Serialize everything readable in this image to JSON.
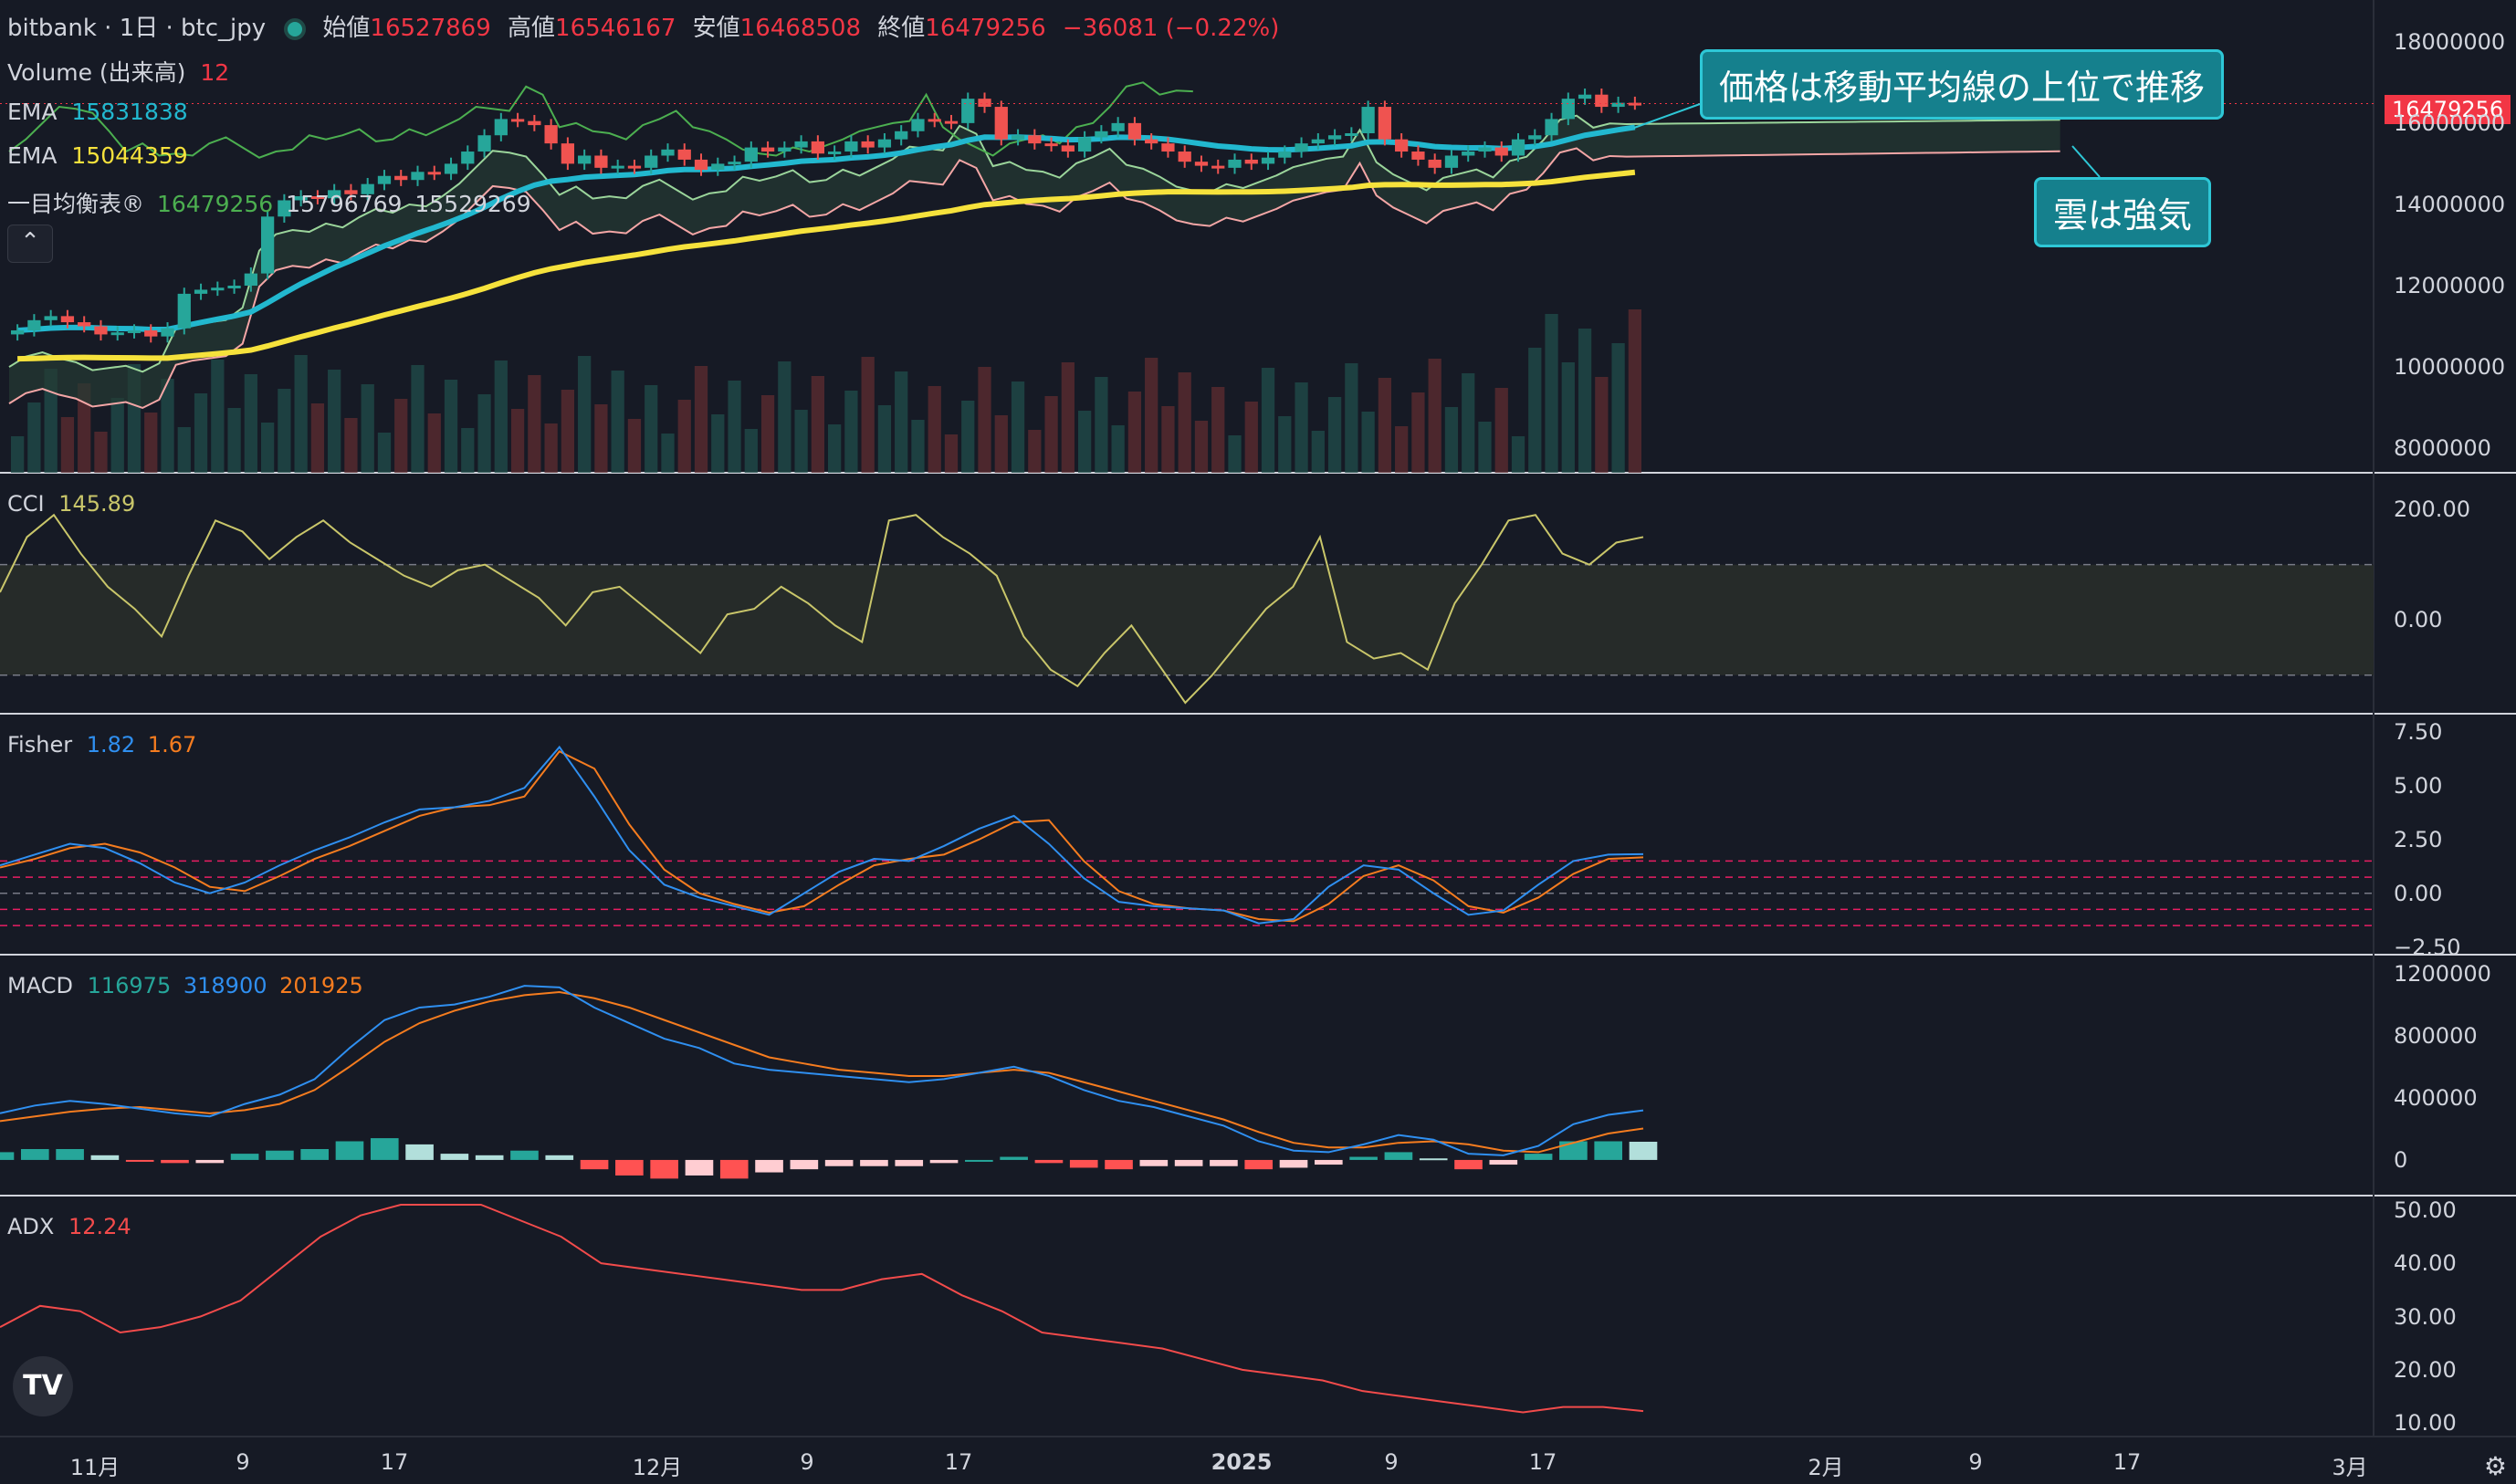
{
  "header": {
    "symbol": "bitbank · 1日 · btc_jpy",
    "open_label": "始値",
    "open": "16527869",
    "high_label": "高値",
    "high": "16546167",
    "low_label": "安値",
    "low": "16468508",
    "close_label": "終値",
    "close": "16479256",
    "change": "−36081 (−0.22%)"
  },
  "legend": {
    "volume_label": "Volume (出来高)",
    "volume_value": "12",
    "ema1_label": "EMA",
    "ema1_value": "15831838",
    "ema2_label": "EMA",
    "ema2_value": "15044359",
    "ichimoku_label": "一目均衡表®",
    "ichimoku_v1": "16479256",
    "ichimoku_v2": "15796769",
    "ichimoku_v3": "15529269"
  },
  "collapse_icon": "chevron-up-icon",
  "callouts": {
    "top": "価格は移動平均線の上位で推移",
    "cloud": "雲は強気"
  },
  "price_tag": "16479256",
  "panels": {
    "cci": {
      "label": "CCI",
      "value": "145.89"
    },
    "fisher": {
      "label": "Fisher",
      "v1": "1.82",
      "v2": "1.67"
    },
    "macd": {
      "label": "MACD",
      "v1": "116975",
      "v2": "318900",
      "v3": "201925"
    },
    "adx": {
      "label": "ADX",
      "value": "12.24"
    }
  },
  "colors": {
    "up": "#26a69a",
    "down": "#ef5350",
    "ema_fast": "#22b8cf",
    "ema_slow": "#f6e23c",
    "cci": "#c9c66a",
    "fisher": "#2f8ff0",
    "trigger": "#f57c1f",
    "adx": "#f24b4b",
    "callout_bg": "#15808d"
  },
  "chart_data": [
    {
      "type": "candlestick",
      "title": "bitbank · 1日 · btc_jpy",
      "y_ticks": [
        "18000000",
        "16000000",
        "14000000",
        "12000000",
        "10000000",
        "8000000"
      ],
      "ylim": [
        7800000,
        18400000
      ],
      "x_tick_labels": [
        "11月",
        "9",
        "17",
        "12月",
        "9",
        "17",
        "2025",
        "9",
        "17",
        "2月",
        "9",
        "17",
        "3月"
      ],
      "close": [
        10900000,
        11150000,
        11250000,
        11100000,
        11000000,
        10800000,
        10850000,
        10900000,
        10750000,
        10950000,
        11800000,
        11900000,
        11950000,
        12000000,
        12300000,
        13700000,
        14100000,
        14200000,
        14150000,
        14350000,
        14250000,
        14500000,
        14700000,
        14600000,
        14800000,
        14750000,
        15000000,
        15300000,
        15700000,
        16100000,
        16050000,
        15950000,
        15500000,
        15000000,
        15200000,
        14900000,
        14950000,
        14900000,
        15200000,
        15350000,
        15100000,
        14850000,
        15000000,
        15050000,
        15400000,
        15300000,
        15400000,
        15550000,
        15250000,
        15300000,
        15550000,
        15400000,
        15600000,
        15800000,
        16100000,
        16050000,
        16000000,
        16600000,
        16400000,
        15600000,
        15700000,
        15500000,
        15450000,
        15300000,
        15650000,
        15800000,
        16000000,
        15600000,
        15500000,
        15300000,
        15050000,
        14950000,
        14900000,
        15100000,
        15000000,
        15150000,
        15300000,
        15500000,
        15600000,
        15700000,
        15750000,
        16400000,
        15600000,
        15300000,
        15100000,
        14900000,
        15200000,
        15300000,
        15400000,
        15200000,
        15600000,
        15700000,
        16100000,
        16600000,
        16700000,
        16400000,
        16500000,
        16479256
      ],
      "ema_fast_last": 15831838,
      "ema_slow_last": 15044359,
      "volume_units_note": ""
    },
    {
      "type": "line",
      "name": "CCI",
      "y_ticks": [
        "200.00",
        "0.00"
      ],
      "ylim": [
        -150,
        230
      ],
      "values": [
        50,
        150,
        190,
        120,
        60,
        20,
        -30,
        80,
        180,
        160,
        110,
        150,
        180,
        140,
        110,
        80,
        60,
        90,
        100,
        70,
        40,
        -10,
        50,
        60,
        20,
        -20,
        -60,
        10,
        20,
        60,
        30,
        -10,
        -40,
        180,
        190,
        150,
        120,
        80,
        -30,
        -90,
        -120,
        -60,
        -10,
        -80,
        -150,
        -100,
        -40,
        20,
        60,
        150,
        -40,
        -70,
        -60,
        -90,
        30,
        100,
        180,
        190,
        120,
        100,
        140,
        150
      ],
      "band": [
        -100,
        100
      ]
    },
    {
      "type": "line",
      "name": "Fisher",
      "y_ticks": [
        "7.50",
        "5.00",
        "2.50",
        "0.00",
        "−2.50"
      ],
      "ylim": [
        -2.6,
        7.8
      ],
      "fisher": [
        1.3,
        1.8,
        2.3,
        2.1,
        1.4,
        0.5,
        0.0,
        0.5,
        1.3,
        2.0,
        2.6,
        3.3,
        3.9,
        4.0,
        4.3,
        4.9,
        6.8,
        4.5,
        2.0,
        0.4,
        -0.2,
        -0.6,
        -1.0,
        0.0,
        1.0,
        1.6,
        1.5,
        2.2,
        3.0,
        3.6,
        2.3,
        0.7,
        -0.4,
        -0.6,
        -0.7,
        -0.8,
        -1.4,
        -1.2,
        0.3,
        1.3,
        1.1,
        0.0,
        -1.0,
        -0.8,
        0.4,
        1.5,
        1.8,
        1.82
      ],
      "trigger": [
        1.2,
        1.6,
        2.1,
        2.3,
        1.9,
        1.2,
        0.3,
        0.1,
        0.8,
        1.6,
        2.2,
        2.9,
        3.6,
        4.0,
        4.1,
        4.5,
        6.6,
        5.8,
        3.2,
        1.1,
        0.0,
        -0.5,
        -0.9,
        -0.6,
        0.4,
        1.3,
        1.6,
        1.8,
        2.5,
        3.3,
        3.4,
        1.5,
        0.1,
        -0.5,
        -0.7,
        -0.8,
        -1.2,
        -1.3,
        -0.5,
        0.8,
        1.3,
        0.6,
        -0.6,
        -0.9,
        -0.2,
        0.9,
        1.6,
        1.67
      ],
      "levels": [
        1.5,
        0.75,
        0,
        -0.75,
        -1.5
      ]
    },
    {
      "type": "bar",
      "name": "MACD",
      "y_ticks": [
        "1200000",
        "800000",
        "400000",
        "0"
      ],
      "ylim": [
        -200000,
        1250000
      ],
      "macd": [
        300000,
        350000,
        380000,
        360000,
        330000,
        300000,
        280000,
        360000,
        420000,
        520000,
        720000,
        900000,
        980000,
        1000000,
        1050000,
        1120000,
        1110000,
        980000,
        880000,
        780000,
        720000,
        620000,
        580000,
        560000,
        540000,
        520000,
        500000,
        520000,
        560000,
        600000,
        540000,
        450000,
        380000,
        340000,
        280000,
        220000,
        120000,
        60000,
        50000,
        100000,
        160000,
        130000,
        40000,
        30000,
        90000,
        230000,
        290000,
        318900
      ],
      "signal": [
        250000,
        280000,
        310000,
        330000,
        340000,
        320000,
        300000,
        320000,
        360000,
        450000,
        600000,
        760000,
        880000,
        960000,
        1020000,
        1060000,
        1080000,
        1040000,
        980000,
        900000,
        820000,
        740000,
        660000,
        620000,
        580000,
        560000,
        540000,
        540000,
        560000,
        580000,
        560000,
        500000,
        440000,
        380000,
        320000,
        260000,
        180000,
        110000,
        80000,
        80000,
        110000,
        120000,
        100000,
        60000,
        50000,
        110000,
        170000,
        201925
      ],
      "histogram": [
        50000,
        70000,
        70000,
        30000,
        -10000,
        -20000,
        -20000,
        40000,
        60000,
        70000,
        120000,
        140000,
        100000,
        40000,
        30000,
        60000,
        30000,
        -60000,
        -100000,
        -120000,
        -100000,
        -120000,
        -80000,
        -60000,
        -40000,
        -40000,
        -40000,
        -20000,
        0,
        20000,
        -20000,
        -50000,
        -60000,
        -40000,
        -40000,
        -40000,
        -60000,
        -50000,
        -30000,
        20000,
        50000,
        10000,
        -60000,
        -30000,
        40000,
        120000,
        120000,
        116975
      ]
    },
    {
      "type": "line",
      "name": "ADX",
      "y_ticks": [
        "50.00",
        "40.00",
        "30.00",
        "20.00",
        "10.00"
      ],
      "ylim": [
        9,
        51
      ],
      "values": [
        28,
        32,
        31,
        27,
        28,
        30,
        33,
        39,
        45,
        49,
        51,
        51,
        51,
        48,
        45,
        40,
        39,
        38,
        37,
        36,
        35,
        35,
        37,
        38,
        34,
        31,
        27,
        26,
        25,
        24,
        22,
        20,
        19,
        18,
        16,
        15,
        14,
        13,
        12,
        13,
        13,
        12.24
      ]
    }
  ]
}
